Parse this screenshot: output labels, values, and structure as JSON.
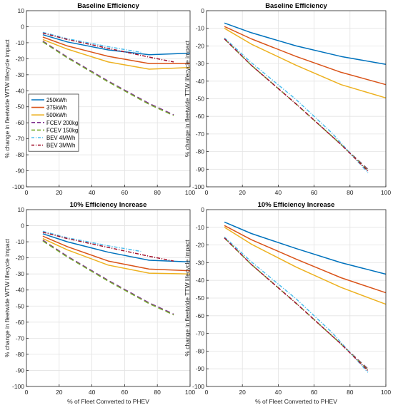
{
  "chart_data": [
    {
      "type": "line",
      "title": "Baseline Efficiency",
      "xlabel": "",
      "ylabel": "% change in fleetwide WTW lifecycle impact",
      "xlim": [
        0,
        100
      ],
      "ylim": [
        -100,
        10
      ],
      "xticks": [
        0,
        20,
        40,
        60,
        80,
        100
      ],
      "yticks": [
        10,
        0,
        -10,
        -20,
        -30,
        -40,
        -50,
        -60,
        -70,
        -80,
        -90,
        -100
      ],
      "grid": true,
      "legend": "left-middle",
      "series": [
        {
          "name": "250kWh",
          "color": "#0072BD",
          "style": "solid",
          "x": [
            10,
            25,
            50,
            75,
            100
          ],
          "y": [
            -5,
            -9.5,
            -14.5,
            -17.5,
            -16.5
          ]
        },
        {
          "name": "375kWh",
          "color": "#D95319",
          "style": "solid",
          "x": [
            10,
            25,
            50,
            75,
            100
          ],
          "y": [
            -6.5,
            -12,
            -18.5,
            -23,
            -23
          ]
        },
        {
          "name": "500kWh",
          "color": "#EDB120",
          "style": "solid",
          "x": [
            10,
            25,
            50,
            75,
            100
          ],
          "y": [
            -8,
            -14,
            -22,
            -26.5,
            -25.5
          ]
        },
        {
          "name": "FCEV 200kg",
          "color": "#7E2F8E",
          "style": "dashed",
          "x": [
            10,
            25,
            50,
            75,
            90
          ],
          "y": [
            -9,
            -19,
            -34,
            -48,
            -55
          ]
        },
        {
          "name": "FCEV 150kg",
          "color": "#77AC30",
          "style": "dashed",
          "x": [
            10,
            25,
            50,
            75,
            90
          ],
          "y": [
            -9.5,
            -19.5,
            -34.5,
            -48.5,
            -55.5
          ]
        },
        {
          "name": "BEV 4MWh",
          "color": "#4DBEEE",
          "style": "dashdot",
          "x": [
            10,
            25,
            50,
            70
          ],
          "y": [
            -3.5,
            -7.5,
            -12.5,
            -16
          ]
        },
        {
          "name": "BEV 3MWh",
          "color": "#A2142F",
          "style": "dashdot",
          "x": [
            10,
            25,
            50,
            75,
            90
          ],
          "y": [
            -4,
            -8,
            -13.5,
            -19,
            -22
          ]
        }
      ]
    },
    {
      "type": "line",
      "title": "Baseline Efficiency",
      "xlabel": "",
      "ylabel": "% change in fleetwide TTW lifecycle impact",
      "xlim": [
        0,
        100
      ],
      "ylim": [
        -100,
        0
      ],
      "xticks": [
        0,
        20,
        40,
        60,
        80,
        100
      ],
      "yticks": [
        0,
        -10,
        -20,
        -30,
        -40,
        -50,
        -60,
        -70,
        -80,
        -90,
        -100
      ],
      "grid": true,
      "series": [
        {
          "name": "250kWh",
          "color": "#0072BD",
          "style": "solid",
          "x": [
            10,
            25,
            50,
            75,
            100
          ],
          "y": [
            -7,
            -12.5,
            -20,
            -26,
            -30.5
          ]
        },
        {
          "name": "375kWh",
          "color": "#D95319",
          "style": "solid",
          "x": [
            10,
            25,
            50,
            75,
            100
          ],
          "y": [
            -9,
            -16,
            -26,
            -35,
            -42
          ]
        },
        {
          "name": "500kWh",
          "color": "#EDB120",
          "style": "solid",
          "x": [
            10,
            25,
            50,
            75,
            100
          ],
          "y": [
            -10,
            -19,
            -31,
            -42,
            -49.5
          ]
        },
        {
          "name": "FCEV 200kg",
          "color": "#7E2F8E",
          "style": "dashed",
          "x": [
            10,
            25,
            50,
            75,
            90
          ],
          "y": [
            -16,
            -31,
            -53,
            -76,
            -90
          ]
        },
        {
          "name": "FCEV 150kg",
          "color": "#77AC30",
          "style": "dashed",
          "x": [
            10,
            25,
            50,
            75,
            90
          ],
          "y": [
            -16,
            -31,
            -53,
            -76,
            -90.5
          ]
        },
        {
          "name": "BEV 4MWh",
          "color": "#4DBEEE",
          "style": "dashdot",
          "x": [
            10,
            25,
            50,
            70,
            90
          ],
          "y": [
            -15.5,
            -29.5,
            -50.5,
            -69.5,
            -92
          ]
        },
        {
          "name": "BEV 3MWh",
          "color": "#A2142F",
          "style": "dashdot",
          "x": [
            10,
            25,
            50,
            75,
            90
          ],
          "y": [
            -16,
            -31,
            -53,
            -76,
            -91
          ]
        }
      ]
    },
    {
      "type": "line",
      "title": "10% Efficiency Increase",
      "xlabel": "% of Fleet Converted to PHEV",
      "ylabel": "% change in fleetwide WTW lifecycle impact",
      "xlim": [
        0,
        100
      ],
      "ylim": [
        -100,
        10
      ],
      "xticks": [
        0,
        20,
        40,
        60,
        80,
        100
      ],
      "yticks": [
        10,
        0,
        -10,
        -20,
        -30,
        -40,
        -50,
        -60,
        -70,
        -80,
        -90,
        -100
      ],
      "grid": true,
      "series": [
        {
          "name": "250kWh",
          "color": "#0072BD",
          "style": "solid",
          "x": [
            10,
            25,
            50,
            75,
            100
          ],
          "y": [
            -5,
            -10,
            -16.5,
            -21.5,
            -22.5
          ]
        },
        {
          "name": "375kWh",
          "color": "#D95319",
          "style": "solid",
          "x": [
            10,
            25,
            50,
            75,
            100
          ],
          "y": [
            -6.5,
            -13,
            -22,
            -27,
            -28
          ]
        },
        {
          "name": "500kWh",
          "color": "#EDB120",
          "style": "solid",
          "x": [
            10,
            25,
            50,
            75,
            100
          ],
          "y": [
            -8,
            -15,
            -24.5,
            -29.5,
            -30
          ]
        },
        {
          "name": "FCEV 200kg",
          "color": "#7E2F8E",
          "style": "dashed",
          "x": [
            10,
            25,
            50,
            75,
            90
          ],
          "y": [
            -9,
            -19,
            -34,
            -48,
            -55
          ]
        },
        {
          "name": "FCEV 150kg",
          "color": "#77AC30",
          "style": "dashed",
          "x": [
            10,
            25,
            50,
            75,
            90
          ],
          "y": [
            -9.5,
            -19.5,
            -34.5,
            -48.5,
            -55.5
          ]
        },
        {
          "name": "BEV 4MWh",
          "color": "#4DBEEE",
          "style": "dashdot",
          "x": [
            10,
            25,
            50,
            70
          ],
          "y": [
            -3.5,
            -7.5,
            -12.5,
            -16
          ]
        },
        {
          "name": "BEV 3MWh",
          "color": "#A2142F",
          "style": "dashdot",
          "x": [
            10,
            25,
            50,
            75,
            90
          ],
          "y": [
            -4,
            -8,
            -13.5,
            -19,
            -22
          ]
        }
      ]
    },
    {
      "type": "line",
      "title": "10% Efficiency Increase",
      "xlabel": "% of Fleet Converted to PHEV",
      "ylabel": "% change in fleetwide TTW lifecycle impact",
      "xlim": [
        0,
        100
      ],
      "ylim": [
        -100,
        0
      ],
      "xticks": [
        0,
        20,
        40,
        60,
        80,
        100
      ],
      "yticks": [
        0,
        -10,
        -20,
        -30,
        -40,
        -50,
        -60,
        -70,
        -80,
        -90,
        -100
      ],
      "grid": true,
      "series": [
        {
          "name": "250kWh",
          "color": "#0072BD",
          "style": "solid",
          "x": [
            10,
            25,
            50,
            75,
            100
          ],
          "y": [
            -7,
            -13.5,
            -22,
            -30,
            -36.5
          ]
        },
        {
          "name": "375kWh",
          "color": "#D95319",
          "style": "solid",
          "x": [
            10,
            25,
            50,
            75,
            100
          ],
          "y": [
            -9,
            -17,
            -28,
            -38.5,
            -47
          ]
        },
        {
          "name": "500kWh",
          "color": "#EDB120",
          "style": "solid",
          "x": [
            10,
            25,
            50,
            75,
            100
          ],
          "y": [
            -10,
            -19.5,
            -32.5,
            -44,
            -53.5
          ]
        },
        {
          "name": "FCEV 200kg",
          "color": "#7E2F8E",
          "style": "dashed",
          "x": [
            10,
            25,
            50,
            75,
            90
          ],
          "y": [
            -16,
            -31,
            -53,
            -76,
            -90
          ]
        },
        {
          "name": "FCEV 150kg",
          "color": "#77AC30",
          "style": "dashed",
          "x": [
            10,
            25,
            50,
            75,
            90
          ],
          "y": [
            -16,
            -31,
            -53,
            -76,
            -90.5
          ]
        },
        {
          "name": "BEV 4MWh",
          "color": "#4DBEEE",
          "style": "dashdot",
          "x": [
            10,
            25,
            50,
            70,
            90
          ],
          "y": [
            -15.5,
            -29.5,
            -50.5,
            -69.5,
            -92
          ]
        },
        {
          "name": "BEV 3MWh",
          "color": "#A2142F",
          "style": "dashdot",
          "x": [
            10,
            25,
            50,
            75,
            90
          ],
          "y": [
            -16,
            -31,
            -53,
            -76,
            -91
          ]
        }
      ]
    }
  ]
}
